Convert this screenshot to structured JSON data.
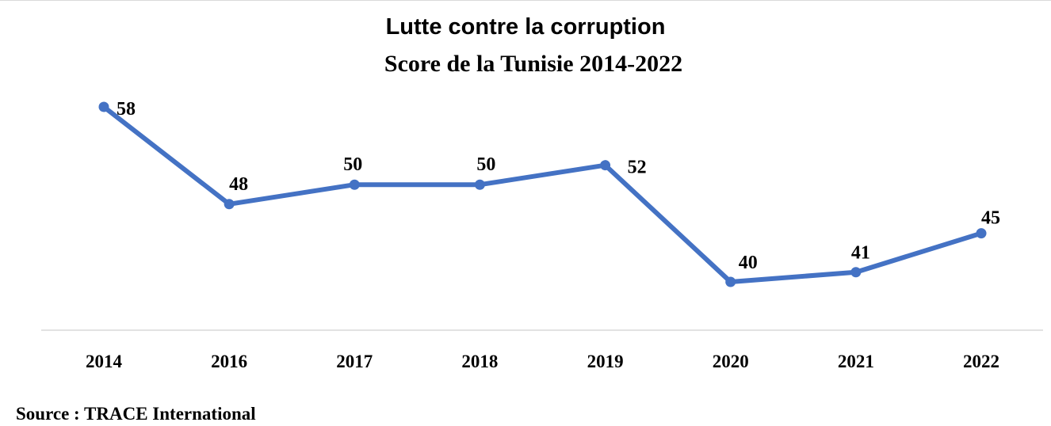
{
  "chart_data": {
    "type": "line",
    "title": "Lutte contre la corruption",
    "subtitle": "Score de la Tunisie 2014-2022",
    "categories": [
      "2014",
      "2016",
      "2017",
      "2018",
      "2019",
      "2020",
      "2021",
      "2022"
    ],
    "series": [
      {
        "values": [
          58,
          48,
          50,
          50,
          52,
          40,
          41,
          45
        ],
        "color": "#4472c4"
      }
    ],
    "data_labels": true,
    "grid": false,
    "legend": "none",
    "axis_color": "#d9d9d9"
  },
  "source": "Source : TRACE International"
}
